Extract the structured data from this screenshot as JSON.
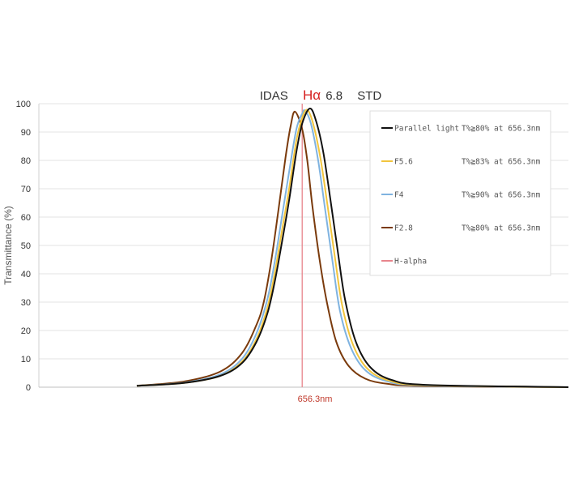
{
  "chart_data": {
    "type": "line",
    "title": {
      "prefix": "IDAS",
      "accent": "Hα",
      "suffix": "6.8",
      "tail": "STD"
    },
    "ylabel": "Transmittance (%)",
    "xlabel": "",
    "ylim": [
      0,
      100
    ],
    "yticks": [
      0,
      10,
      20,
      30,
      40,
      50,
      60,
      70,
      80,
      90,
      100
    ],
    "xlim": [
      620.0,
      693.0
    ],
    "grid": true,
    "legend_position": "top-right",
    "accent_color": "#d61f1f",
    "series": [
      {
        "name": "Parallel light",
        "note": "T%≧80% at 656.3nm",
        "color": "#111111",
        "center": 657.35,
        "peak": 98.3,
        "x": [
          633.5,
          640,
          645,
          648,
          650,
          651.5,
          652.5,
          653.5,
          654.5,
          655.5,
          656.3,
          657.35,
          658.2,
          659.2,
          660.2,
          661.2,
          662.2,
          663.7,
          665.7,
          668.7,
          673.7,
          693
        ],
        "y": [
          0.5,
          1.5,
          4,
          8.5,
          16,
          26,
          37,
          51,
          66,
          83,
          93,
          98.3,
          94,
          83,
          66,
          48,
          31,
          16,
          7,
          2.5,
          0.8,
          0
        ]
      },
      {
        "name": "F5.6",
        "note": "T%≧83% at 656.3nm",
        "color": "#f2c53d",
        "center": 657.0,
        "peak": 97.8,
        "x": [
          633.5,
          640,
          645,
          648,
          650,
          651.5,
          652.5,
          653.5,
          654.5,
          655.5,
          656.3,
          657.0,
          657.8,
          658.8,
          659.8,
          660.8,
          661.8,
          663.3,
          665.3,
          668.3,
          673.3,
          693
        ],
        "y": [
          0.5,
          1.5,
          4,
          9,
          17,
          28,
          40,
          55,
          70,
          87,
          95,
          97.8,
          93,
          81,
          64,
          46,
          29,
          15,
          6.5,
          2.3,
          0.7,
          0
        ]
      },
      {
        "name": "F4",
        "note": "T%≧90% at 656.3nm",
        "color": "#7fb3e0",
        "center": 656.7,
        "peak": 97.5,
        "x": [
          633.5,
          640,
          645,
          648,
          650,
          651.5,
          652.5,
          653.5,
          654.5,
          655.5,
          656.3,
          656.7,
          657.5,
          658.5,
          659.5,
          660.5,
          661.5,
          663,
          665,
          668,
          673,
          693
        ],
        "y": [
          0.5,
          1.6,
          4.5,
          10,
          19,
          31,
          44,
          60,
          76,
          91,
          96.5,
          97.5,
          93,
          80,
          62,
          44,
          27,
          14,
          6,
          2.1,
          0.6,
          0
        ]
      },
      {
        "name": "F2.8",
        "note": "T%≧80% at 656.3nm",
        "color": "#7a3a0c",
        "center": 655.3,
        "peak": 97.2,
        "x": [
          633.5,
          640,
          645,
          648,
          650,
          651,
          652,
          653,
          654,
          654.7,
          655.3,
          656.3,
          657,
          657.7,
          658.7,
          659.7,
          661,
          662.7,
          665,
          668,
          673,
          693
        ],
        "y": [
          0.5,
          2,
          5.5,
          12,
          22,
          30,
          44,
          62,
          81,
          92,
          97.2,
          91,
          80,
          64,
          45,
          30,
          16,
          7.5,
          3,
          1.2,
          0.4,
          0
        ]
      },
      {
        "name": "H-alpha",
        "note": "",
        "color": "#e8858c",
        "x": [
          656.3,
          656.3
        ],
        "y": [
          0,
          100
        ]
      }
    ],
    "annotations": [
      {
        "text": "656.3nm",
        "x": 656.3
      }
    ]
  }
}
